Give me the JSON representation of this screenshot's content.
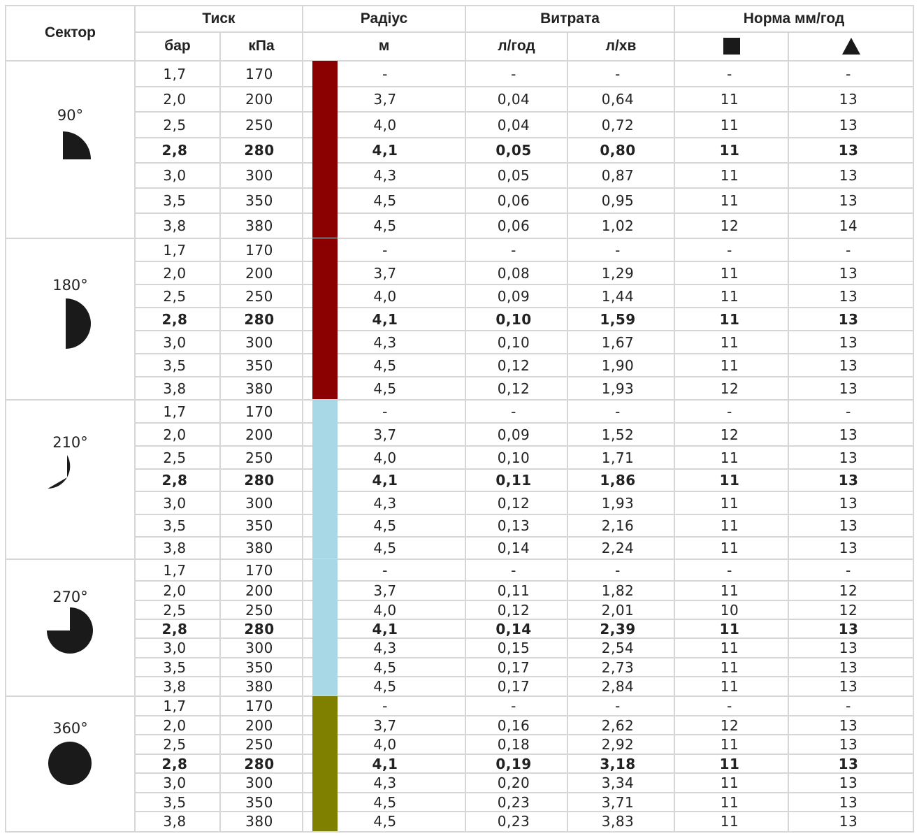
{
  "header": {
    "sector": "Сектор",
    "pressure": "Тиск",
    "bar": "бар",
    "kpa": "кПа",
    "radius": "Радіус",
    "radius_unit": "м",
    "flow": "Витрата",
    "flow_lh": "л/год",
    "flow_lmin": "л/хв",
    "rate": "Норма мм/год"
  },
  "groups": [
    {
      "sector": "90°",
      "icon": "quarter-circle-icon",
      "color": "#8b0000",
      "rows": [
        [
          "1,7",
          "170",
          "-",
          "-",
          "-",
          "-",
          "-"
        ],
        [
          "2,0",
          "200",
          "3,7",
          "0,04",
          "0,64",
          "11",
          "13"
        ],
        [
          "2,5",
          "250",
          "4,0",
          "0,04",
          "0,72",
          "11",
          "13"
        ],
        [
          "2,8",
          "280",
          "4,1",
          "0,05",
          "0,80",
          "11",
          "13"
        ],
        [
          "3,0",
          "300",
          "4,3",
          "0,05",
          "0,87",
          "11",
          "13"
        ],
        [
          "3,5",
          "350",
          "4,5",
          "0,06",
          "0,95",
          "11",
          "13"
        ],
        [
          "3,8",
          "380",
          "4,5",
          "0,06",
          "1,02",
          "12",
          "14"
        ]
      ]
    },
    {
      "sector": "180°",
      "icon": "half-circle-icon",
      "color": "#8b0000",
      "rows": [
        [
          "1,7",
          "170",
          "-",
          "-",
          "-",
          "-",
          "-"
        ],
        [
          "2,0",
          "200",
          "3,7",
          "0,08",
          "1,29",
          "11",
          "13"
        ],
        [
          "2,5",
          "250",
          "4,0",
          "0,09",
          "1,44",
          "11",
          "13"
        ],
        [
          "2,8",
          "280",
          "4,1",
          "0,10",
          "1,59",
          "11",
          "13"
        ],
        [
          "3,0",
          "300",
          "4,3",
          "0,10",
          "1,67",
          "11",
          "13"
        ],
        [
          "3,5",
          "350",
          "4,5",
          "0,12",
          "1,90",
          "11",
          "13"
        ],
        [
          "3,8",
          "380",
          "4,5",
          "0,12",
          "1,93",
          "12",
          "13"
        ]
      ]
    },
    {
      "sector": "210°",
      "icon": "sector-210-icon",
      "color": "#a8d8e6",
      "rows": [
        [
          "1,7",
          "170",
          "-",
          "-",
          "-",
          "-",
          "-"
        ],
        [
          "2,0",
          "200",
          "3,7",
          "0,09",
          "1,52",
          "12",
          "13"
        ],
        [
          "2,5",
          "250",
          "4,0",
          "0,10",
          "1,71",
          "11",
          "13"
        ],
        [
          "2,8",
          "280",
          "4,1",
          "0,11",
          "1,86",
          "11",
          "13"
        ],
        [
          "3,0",
          "300",
          "4,3",
          "0,12",
          "1,93",
          "11",
          "13"
        ],
        [
          "3,5",
          "350",
          "4,5",
          "0,13",
          "2,16",
          "11",
          "13"
        ],
        [
          "3,8",
          "380",
          "4,5",
          "0,14",
          "2,24",
          "11",
          "13"
        ]
      ]
    },
    {
      "sector": "270°",
      "icon": "three-quarter-circle-icon",
      "color": "#a8d8e6",
      "rows": [
        [
          "1,7",
          "170",
          "-",
          "-",
          "-",
          "-",
          "-"
        ],
        [
          "2,0",
          "200",
          "3,7",
          "0,11",
          "1,82",
          "11",
          "12"
        ],
        [
          "2,5",
          "250",
          "4,0",
          "0,12",
          "2,01",
          "10",
          "12"
        ],
        [
          "2,8",
          "280",
          "4,1",
          "0,14",
          "2,39",
          "11",
          "13"
        ],
        [
          "3,0",
          "300",
          "4,3",
          "0,15",
          "2,54",
          "11",
          "13"
        ],
        [
          "3,5",
          "350",
          "4,5",
          "0,17",
          "2,73",
          "11",
          "13"
        ],
        [
          "3,8",
          "380",
          "4,5",
          "0,17",
          "2,84",
          "11",
          "13"
        ]
      ]
    },
    {
      "sector": "360°",
      "icon": "full-circle-icon",
      "color": "#808000",
      "rows": [
        [
          "1,7",
          "170",
          "-",
          "-",
          "-",
          "-",
          "-"
        ],
        [
          "2,0",
          "200",
          "3,7",
          "0,16",
          "2,62",
          "12",
          "13"
        ],
        [
          "2,5",
          "250",
          "4,0",
          "0,18",
          "2,92",
          "11",
          "13"
        ],
        [
          "2,8",
          "280",
          "4,1",
          "0,19",
          "3,18",
          "11",
          "13"
        ],
        [
          "3,0",
          "300",
          "4,3",
          "0,20",
          "3,34",
          "11",
          "13"
        ],
        [
          "3,5",
          "350",
          "4,5",
          "0,23",
          "3,71",
          "11",
          "13"
        ],
        [
          "3,8",
          "380",
          "4,5",
          "0,23",
          "3,83",
          "11",
          "13"
        ]
      ]
    }
  ]
}
